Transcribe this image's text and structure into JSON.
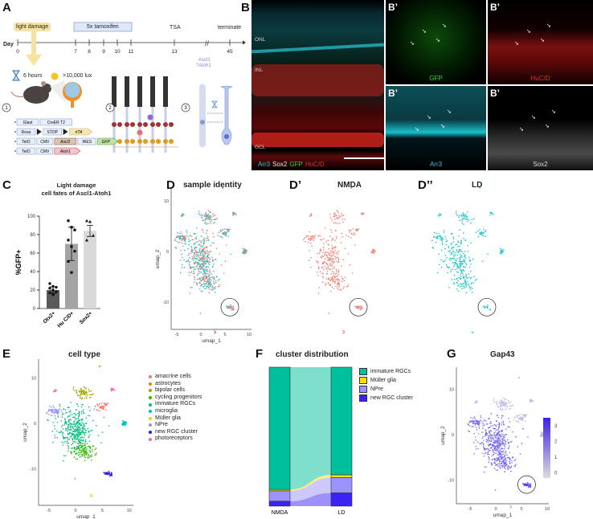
{
  "panels": {
    "A": "A",
    "B": "B",
    "Bp": "B’",
    "C": "C",
    "D": "D",
    "Dp": "D’",
    "Dpp": "D’’",
    "E": "E",
    "F": "F",
    "G": "G"
  },
  "timeline": {
    "day_label": "Day",
    "days": [
      "0",
      "7",
      "8",
      "9",
      "10",
      "11",
      "13",
      "45"
    ],
    "light_damage": "light damage",
    "tamoxifen": "5x tamoxifen",
    "tsa": "TSA",
    "terminate": "terminate",
    "duration": "6 hours",
    "intensity": ">10,000 lux",
    "steps": [
      "1",
      "2",
      "3"
    ],
    "genes_up": "Ascl1\nAtoh1",
    "constructs": [
      [
        "Glast",
        "CreER T2"
      ],
      [
        "Rosa",
        "STOP",
        "rtTA"
      ],
      [
        "TetO",
        "CMV",
        "Ascl1",
        "IRES",
        "GFP"
      ],
      [
        "TetO",
        "CMV",
        "Atoh1"
      ]
    ]
  },
  "micrograph": {
    "layers": [
      "ONL",
      "INL",
      "GCL"
    ],
    "stain_labels": [
      {
        "text": "Arr3",
        "color": "#29c6d6"
      },
      {
        "text": "Sox2",
        "color": "#e6e6e6"
      },
      {
        "text": "GFP",
        "color": "#2fd12f"
      },
      {
        "text": "HuC/D",
        "color": "#e3302a"
      }
    ],
    "subpanels": [
      {
        "label": "GFP",
        "color": "#2fd12f"
      },
      {
        "label": "HuC/D",
        "color": "#e3302a"
      },
      {
        "label": "Arr3",
        "color": "#29c6d6"
      },
      {
        "label": "Sox2",
        "color": "#dddddd"
      }
    ]
  },
  "chart_data": [
    {
      "type": "bar",
      "title": "Light damage\ncell fates of Ascl1-Atoh1",
      "ylabel": "%GFP+",
      "ylim": [
        0,
        100
      ],
      "yticks": [
        "0",
        "20",
        "40",
        "60",
        "80",
        "100"
      ],
      "categories": [
        "Otx2+",
        "Hu C/D+",
        "Sox2+"
      ],
      "values": [
        20,
        70,
        84
      ],
      "errors": [
        3.5,
        18,
        6
      ],
      "colors": [
        "#5a5a5a",
        "#a4a4a4",
        "#d9d9d9"
      ],
      "points": [
        [
          27,
          24,
          23,
          22,
          20,
          18,
          17,
          15
        ],
        [
          95,
          88,
          85,
          74,
          67,
          62,
          51,
          39
        ],
        [
          95,
          94,
          79,
          74
        ]
      ],
      "markers": [
        "circle",
        "square",
        "triangle"
      ]
    },
    {
      "type": "stacked-bar",
      "title": "cluster distribution",
      "categories": [
        "NMDA",
        "LD"
      ],
      "series": [
        {
          "name": "immature RGCs",
          "color": "#00bf9c",
          "values": [
            88,
            77.5
          ]
        },
        {
          "name": "Müller glia",
          "color": "#ffe000",
          "values": [
            1,
            2
          ]
        },
        {
          "name": "NPre",
          "color": "#9b93ff",
          "values": [
            7.5,
            11
          ]
        },
        {
          "name": "new RGC cluster",
          "color": "#3b22f5",
          "values": [
            3.5,
            9.5
          ]
        }
      ]
    }
  ],
  "umap": {
    "xlabel": "umap_1",
    "ylabel": "umap_2",
    "D_title": "sample identity",
    "Dp_title": "NMDA",
    "Dpp_title": "LD",
    "sample_colors": {
      "NMDA": "#f08078",
      "LD": "#1cc3c8"
    },
    "E_title": "cell type",
    "cell_types": [
      {
        "name": "amacrine cells",
        "color": "#f8766d"
      },
      {
        "name": "astrocytes",
        "color": "#d89000"
      },
      {
        "name": "bipolar cells",
        "color": "#a3a500"
      },
      {
        "name": "cycling progenitors",
        "color": "#39b600"
      },
      {
        "name": "immature RGCs",
        "color": "#00bf7d"
      },
      {
        "name": "microglia",
        "color": "#00bfc4"
      },
      {
        "name": "Müller glia",
        "color": "#f2d600"
      },
      {
        "name": "NPre",
        "color": "#9590ff"
      },
      {
        "name": "new RGC cluster",
        "color": "#2b16f0"
      },
      {
        "name": "photoreceptors",
        "color": "#ff62bc"
      }
    ],
    "G_title": "Gap43",
    "G_scale": [
      "3",
      "2",
      "1",
      "0"
    ],
    "xticks": [
      "-5",
      "0",
      "5",
      "10"
    ],
    "yticks": [
      "10",
      "0",
      "-10"
    ]
  }
}
